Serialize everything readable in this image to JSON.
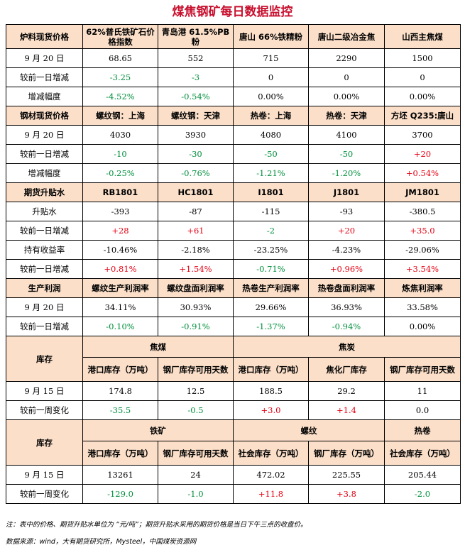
{
  "title": "煤焦钢矿每日数据监控",
  "raw_material": {
    "header": [
      "炉料现货价格",
      "62%普氏铁矿石价格指数",
      "青岛港 61.5%PB粉",
      "唐山 66%铁精粉",
      "唐山二级冶金焦",
      "山西主焦煤"
    ],
    "rows": [
      {
        "label": "9 月 20 日",
        "values": [
          "68.65",
          "552",
          "715",
          "2290",
          "1500"
        ],
        "colors": [
          "n",
          "n",
          "n",
          "n",
          "n"
        ]
      },
      {
        "label": "较前一日增减",
        "values": [
          "-3.25",
          "-3",
          "0",
          "0",
          "0"
        ],
        "colors": [
          "d",
          "d",
          "n",
          "n",
          "n"
        ]
      },
      {
        "label": "增减幅度",
        "values": [
          "-4.52%",
          "-0.54%",
          "0.00%",
          "0.00%",
          "0.00%"
        ],
        "colors": [
          "d",
          "d",
          "n",
          "n",
          "n"
        ]
      }
    ]
  },
  "steel": {
    "header": [
      "钢材现货价格",
      "螺纹钢：上海",
      "螺纹钢：天津",
      "热卷：上海",
      "热卷：天津",
      "方坯 Q235:唐山"
    ],
    "rows": [
      {
        "label": "9 月 20 日",
        "values": [
          "4030",
          "3930",
          "4080",
          "4100",
          "3700"
        ],
        "colors": [
          "n",
          "n",
          "n",
          "n",
          "n"
        ]
      },
      {
        "label": "较前一日增减",
        "values": [
          "-10",
          "-30",
          "-50",
          "-50",
          "+20"
        ],
        "colors": [
          "d",
          "d",
          "d",
          "d",
          "u"
        ]
      },
      {
        "label": "增减幅度",
        "values": [
          "-0.25%",
          "-0.76%",
          "-1.21%",
          "-1.20%",
          "+0.54%"
        ],
        "colors": [
          "d",
          "d",
          "d",
          "d",
          "u"
        ]
      }
    ]
  },
  "futures": {
    "header": [
      "期货升贴水",
      "RB1801",
      "HC1801",
      "I1801",
      "J1801",
      "JM1801"
    ],
    "rows": [
      {
        "label": "升贴水",
        "values": [
          "-393",
          "-87",
          "-115",
          "-93",
          "-380.5"
        ],
        "colors": [
          "n",
          "n",
          "n",
          "n",
          "n"
        ]
      },
      {
        "label": "较前一日增减",
        "values": [
          "+28",
          "+61",
          "-2",
          "+20",
          "+35.0"
        ],
        "colors": [
          "u",
          "u",
          "d",
          "u",
          "u"
        ]
      },
      {
        "label": "持有收益率",
        "values": [
          "-10.46%",
          "-2.18%",
          "-23.25%",
          "-4.23%",
          "-29.06%"
        ],
        "colors": [
          "n",
          "n",
          "n",
          "n",
          "n"
        ]
      },
      {
        "label": "较前一日增减",
        "values": [
          "+0.81%",
          "+1.54%",
          "-0.71%",
          "+0.96%",
          "+3.54%"
        ],
        "colors": [
          "u",
          "u",
          "d",
          "u",
          "u"
        ]
      }
    ]
  },
  "profit": {
    "header": [
      "生产利润",
      "螺纹生产利润率",
      "螺纹盘面利润率",
      "热卷生产利润率",
      "热卷盘面利润率",
      "炼焦利润率"
    ],
    "rows": [
      {
        "label": "9 月 20 日",
        "values": [
          "34.11%",
          "30.93%",
          "29.66%",
          "36.93%",
          "33.58%"
        ],
        "colors": [
          "n",
          "n",
          "n",
          "n",
          "n"
        ]
      },
      {
        "label": "较前一日增减",
        "values": [
          "-0.10%",
          "-0.91%",
          "-1.37%",
          "-0.94%",
          "0.00%"
        ],
        "colors": [
          "d",
          "d",
          "d",
          "d",
          "n"
        ]
      }
    ]
  },
  "inventory_coal": {
    "section": "库存",
    "groups": [
      "焦煤",
      "焦炭"
    ],
    "header": [
      "港口库存（万吨）",
      "钢厂库存可用天数",
      "港口库存（万吨）",
      "焦化厂库存",
      "钢厂库存可用天数"
    ],
    "rows": [
      {
        "label": "9 月 15 日",
        "values": [
          "174.8",
          "12.5",
          "188.5",
          "29.2",
          "11"
        ],
        "colors": [
          "n",
          "n",
          "n",
          "n",
          "n"
        ]
      },
      {
        "label": "较前一周变化",
        "values": [
          "-35.5",
          "-0.5",
          "+3.0",
          "+1.4",
          "0.0"
        ],
        "colors": [
          "d",
          "d",
          "u",
          "u",
          "n"
        ]
      }
    ]
  },
  "inventory_steel": {
    "section": "库存",
    "groups": [
      "铁矿",
      "螺纹",
      "热卷"
    ],
    "header": [
      "港口库存（万吨）",
      "钢厂库存可用天数",
      "社会库存（万吨）",
      "钢厂库存（万吨）",
      "社会库存（万吨）"
    ],
    "rows": [
      {
        "label": "9 月 15 日",
        "values": [
          "13261",
          "24",
          "472.02",
          "225.55",
          "205.44"
        ],
        "colors": [
          "n",
          "n",
          "n",
          "n",
          "n"
        ]
      },
      {
        "label": "较前一周变化",
        "values": [
          "-129.0",
          "-1.0",
          "+11.8",
          "+3.8",
          "-2.0"
        ],
        "colors": [
          "d",
          "d",
          "u",
          "u",
          "d"
        ]
      }
    ]
  },
  "note": "注：表中的价格、期货升贴水单位为 “元/吨”；期货升贴水采用的期货价格是当日下午三点的收盘价。",
  "source": "数据来源：wind，大有期货研究所，Mysteel，中国煤炭资源网"
}
